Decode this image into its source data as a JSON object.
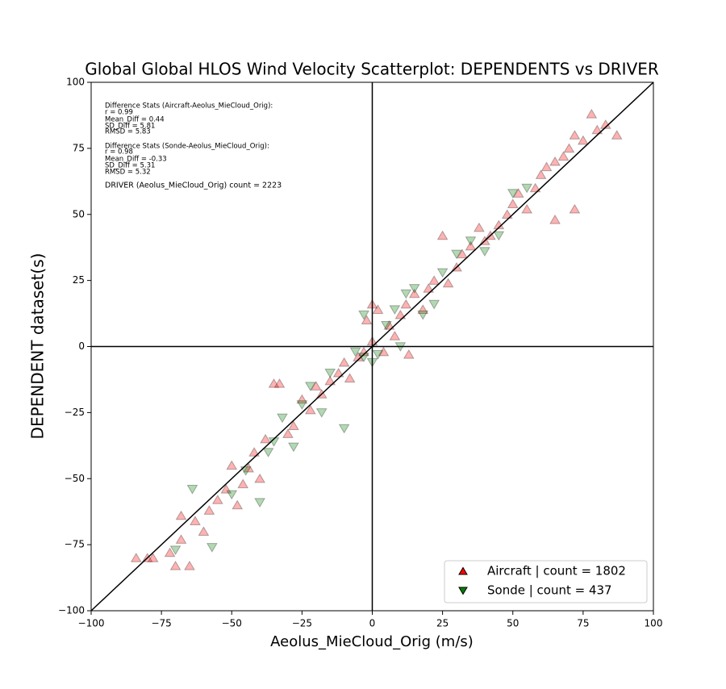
{
  "chart_data": {
    "type": "scatter",
    "title": "Global Global HLOS Wind Velocity Scatterplot: DEPENDENTS vs DRIVER",
    "x_label": "Aeolus_MieCloud_Orig (m/s)",
    "y_label": "DEPENDENT dataset(s)",
    "annotations": [
      "Difference Stats (Aircraft-Aeolus_MieCloud_Orig):",
      "r = 0.99",
      "Mean_Diff = 0.44",
      "SD_Diff = 5.81",
      "RMSD = 5.83",
      "Difference Stats (Sonde-Aeolus_MieCloud_Orig):",
      "r = 0.98",
      "Mean_Diff = -0.33",
      "SD_Diff = 5.31",
      "RMSD = 5.32",
      "DRIVER (Aeolus_MieCloud_Orig) count = 2223"
    ],
    "xlim": [
      -100,
      100
    ],
    "ylim": [
      -100,
      100
    ],
    "xticks": [
      {
        "value": -100,
        "label": "−100"
      },
      {
        "value": -75,
        "label": "−75"
      },
      {
        "value": -50,
        "label": "−50"
      },
      {
        "value": -25,
        "label": "−25"
      },
      0,
      25,
      50,
      75,
      100
    ],
    "yticks": [
      {
        "value": -100,
        "label": "−100"
      },
      {
        "value": -75,
        "label": "−75"
      },
      {
        "value": -50,
        "label": "−50"
      },
      {
        "value": -25,
        "label": "−25"
      },
      0,
      25,
      50,
      75,
      100
    ],
    "legend": "lower right",
    "series": [
      {
        "name": "Aircraft | count = 1802",
        "color": "red",
        "marker": "^",
        "x": [
          -84,
          -80,
          -78,
          -72,
          -70,
          -68,
          -65,
          -63,
          -60,
          -58,
          -55,
          -52,
          -50,
          -48,
          -46,
          -44,
          -42,
          -40,
          -38,
          -35,
          -33,
          -30,
          -28,
          -25,
          -22,
          -20,
          -18,
          -15,
          -12,
          -10,
          -8,
          -5,
          -3,
          -2,
          0,
          2,
          4,
          6,
          8,
          10,
          12,
          15,
          18,
          20,
          22,
          25,
          27,
          30,
          32,
          35,
          38,
          40,
          42,
          45,
          48,
          50,
          52,
          55,
          58,
          60,
          62,
          65,
          68,
          70,
          72,
          75,
          78,
          80,
          83,
          87,
          65,
          72,
          -68,
          13,
          0
        ],
        "y": [
          -80,
          -80,
          -80,
          -78,
          -83,
          -64,
          -83,
          -66,
          -70,
          -62,
          -58,
          -54,
          -45,
          -60,
          -52,
          -46,
          -40,
          -50,
          -35,
          -14,
          -14,
          -33,
          -30,
          -20,
          -24,
          -15,
          -18,
          -13,
          -10,
          -6,
          -12,
          -4,
          -2,
          10,
          2,
          14,
          -2,
          8,
          4,
          12,
          16,
          20,
          14,
          22,
          25,
          42,
          24,
          30,
          35,
          38,
          45,
          40,
          42,
          46,
          50,
          54,
          58,
          52,
          60,
          65,
          68,
          70,
          72,
          75,
          80,
          78,
          88,
          82,
          84,
          80,
          48,
          52,
          -73,
          -3,
          16
        ]
      },
      {
        "name": "Sonde | count = 437",
        "color": "green",
        "marker": "v",
        "x": [
          -70,
          -64,
          -57,
          -50,
          -45,
          -40,
          -37,
          -35,
          -32,
          -28,
          -25,
          -22,
          -18,
          -15,
          -10,
          -6,
          -3,
          0,
          2,
          5,
          8,
          12,
          15,
          18,
          22,
          25,
          30,
          35,
          40,
          45,
          50,
          55,
          -3,
          10
        ],
        "y": [
          -77,
          -54,
          -76,
          -56,
          -47,
          -59,
          -40,
          -36,
          -27,
          -38,
          -22,
          -15,
          -25,
          -10,
          -31,
          -2,
          12,
          -6,
          -3,
          8,
          14,
          20,
          22,
          12,
          16,
          28,
          35,
          40,
          36,
          42,
          58,
          60,
          -4,
          0
        ]
      }
    ]
  }
}
